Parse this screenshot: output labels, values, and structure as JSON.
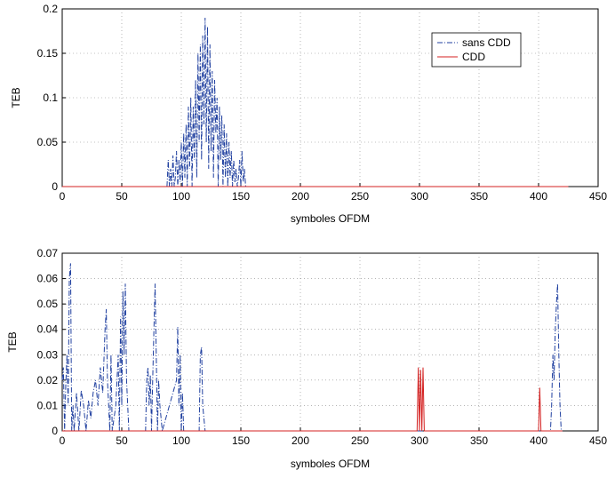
{
  "chart_data": [
    {
      "type": "line",
      "xlabel": "symboles OFDM",
      "ylabel": "TEB",
      "xlim": [
        0,
        450
      ],
      "ylim": [
        0,
        0.2
      ],
      "xticks": [
        0,
        50,
        100,
        150,
        200,
        250,
        300,
        350,
        400,
        450
      ],
      "xtick_labels": [
        "0",
        "50",
        "100",
        "150",
        "200",
        "250",
        "300",
        "350",
        "400",
        "450"
      ],
      "yticks": [
        0,
        0.05,
        0.1,
        0.15,
        0.2
      ],
      "ytick_labels": [
        "0",
        "0.05",
        "0.1",
        "0.15",
        "0.2"
      ],
      "grid": true,
      "legend": "top-right",
      "series": [
        {
          "name": "sans CDD",
          "color": "#1f3f9f",
          "style": "dashdot",
          "x": [
            88,
            89,
            90,
            91,
            92,
            93,
            94,
            95,
            96,
            97,
            98,
            99,
            100,
            101,
            102,
            103,
            104,
            105,
            106,
            107,
            108,
            109,
            110,
            111,
            112,
            113,
            114,
            115,
            116,
            117,
            118,
            119,
            120,
            121,
            122,
            123,
            124,
            125,
            126,
            127,
            128,
            129,
            130,
            131,
            132,
            133,
            134,
            135,
            136,
            137,
            138,
            139,
            140,
            141,
            142,
            143,
            144,
            145,
            146,
            147,
            148,
            149,
            150,
            151,
            152,
            153,
            154,
            425
          ],
          "y": [
            0,
            0.03,
            0,
            0.02,
            0,
            0.035,
            0,
            0.01,
            0.04,
            0,
            0.03,
            0.005,
            0.05,
            0,
            0.06,
            0.01,
            0.07,
            0,
            0.09,
            0.02,
            0.1,
            0,
            0.09,
            0.03,
            0.12,
            0.01,
            0.15,
            0.05,
            0.16,
            0.03,
            0.17,
            0.07,
            0.19,
            0.05,
            0.18,
            0.02,
            0.16,
            0.04,
            0.13,
            0.01,
            0.12,
            0.06,
            0.1,
            0,
            0.09,
            0.03,
            0.08,
            0,
            0.07,
            0.01,
            0.06,
            0,
            0.05,
            0.01,
            0.04,
            0,
            0.03,
            0.005,
            0.02,
            0,
            0.01,
            0.03,
            0,
            0.04,
            0.005,
            0.02,
            0,
            0
          ]
        },
        {
          "name": "CDD",
          "color": "#d42020",
          "style": "solid",
          "x": [
            0,
            425
          ],
          "y": [
            0,
            0
          ]
        }
      ]
    },
    {
      "type": "line",
      "xlabel": "symboles OFDM",
      "ylabel": "TEB",
      "xlim": [
        0,
        450
      ],
      "ylim": [
        0,
        0.07
      ],
      "xticks": [
        0,
        50,
        100,
        150,
        200,
        250,
        300,
        350,
        400,
        450
      ],
      "xtick_labels": [
        "0",
        "50",
        "100",
        "150",
        "200",
        "250",
        "300",
        "350",
        "400",
        "450"
      ],
      "yticks": [
        0,
        0.01,
        0.02,
        0.03,
        0.04,
        0.05,
        0.06,
        0.07
      ],
      "ytick_labels": [
        "0",
        "0.01",
        "0.02",
        "0.03",
        "0.04",
        "0.05",
        "0.06",
        "0.07"
      ],
      "grid": true,
      "series": [
        {
          "name": "sans CDD",
          "color": "#1f3f9f",
          "style": "dashdot",
          "x": [
            0,
            1,
            2,
            3,
            4,
            5,
            6,
            7,
            8,
            9,
            10,
            12,
            14,
            16,
            18,
            20,
            22,
            24,
            26,
            28,
            30,
            32,
            34,
            36,
            37,
            38,
            40,
            41,
            42,
            45,
            47,
            48,
            49,
            50,
            51,
            52,
            53,
            54,
            56,
            70,
            71,
            72,
            73,
            74,
            75,
            76,
            77,
            78,
            80,
            81,
            82,
            84,
            96,
            97,
            98,
            99,
            100,
            101,
            102,
            115,
            116,
            117,
            118,
            120,
            410,
            411,
            412,
            413,
            414,
            415,
            416,
            417,
            418,
            419,
            420
          ],
          "y": [
            0.02,
            0.025,
            0,
            0.018,
            0.03,
            0.01,
            0.06,
            0.066,
            0,
            0.01,
            0,
            0.015,
            0,
            0.016,
            0.01,
            0,
            0.012,
            0.005,
            0.015,
            0.02,
            0.01,
            0.025,
            0.015,
            0.04,
            0.048,
            0.02,
            0,
            0.03,
            0,
            0.01,
            0.03,
            0,
            0.045,
            0.01,
            0.055,
            0.03,
            0.058,
            0.02,
            0,
            0,
            0.02,
            0.025,
            0.01,
            0.022,
            0,
            0.02,
            0.04,
            0.058,
            0,
            0.02,
            0.01,
            0,
            0.02,
            0.041,
            0.01,
            0.03,
            0,
            0.015,
            0,
            0,
            0.03,
            0.033,
            0.01,
            0,
            0,
            0.01,
            0.03,
            0.02,
            0.04,
            0.05,
            0.058,
            0.03,
            0.01,
            0,
            0
          ]
        },
        {
          "name": "CDD",
          "color": "#d42020",
          "style": "solid",
          "x": [
            0,
            296,
            298,
            299,
            300,
            301,
            302,
            303,
            304,
            305,
            306,
            398,
            399,
            400,
            401,
            402,
            403,
            420
          ],
          "y": [
            0,
            0,
            0,
            0.025,
            0,
            0.024,
            0,
            0.025,
            0,
            0,
            0,
            0,
            0,
            0,
            0.017,
            0,
            0,
            0
          ]
        }
      ]
    }
  ]
}
